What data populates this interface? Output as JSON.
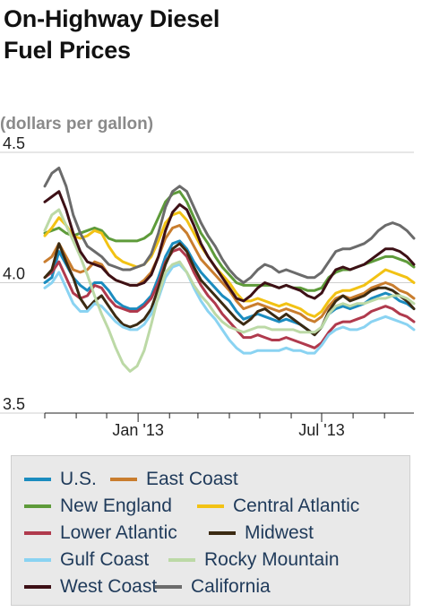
{
  "title_line1": "On-Highway Diesel",
  "title_line2": "Fuel Prices",
  "unit_label": "(dollars per gallon)",
  "chart_data": {
    "type": "line",
    "title": "On-Highway Diesel Fuel Prices",
    "ylabel": "(dollars per gallon)",
    "xlabel": "",
    "ylim": [
      3.5,
      4.5
    ],
    "yticks": [
      "4.5",
      "4.0",
      "3.5"
    ],
    "xtick_labels": [
      "Jan '13",
      "Jul '13"
    ],
    "grid": "horizontal",
    "legend_position": "bottom",
    "x": [
      "2012-10-01",
      "2012-10-08",
      "2012-10-15",
      "2012-10-22",
      "2012-10-29",
      "2012-11-05",
      "2012-11-12",
      "2012-11-19",
      "2012-11-26",
      "2012-12-03",
      "2012-12-10",
      "2012-12-17",
      "2012-12-24",
      "2012-12-31",
      "2013-01-07",
      "2013-01-14",
      "2013-01-21",
      "2013-01-28",
      "2013-02-04",
      "2013-02-11",
      "2013-02-18",
      "2013-02-25",
      "2013-03-04",
      "2013-03-11",
      "2013-03-18",
      "2013-03-25",
      "2013-04-01",
      "2013-04-08",
      "2013-04-15",
      "2013-04-22",
      "2013-04-29",
      "2013-05-06",
      "2013-05-13",
      "2013-05-20",
      "2013-05-27",
      "2013-06-03",
      "2013-06-10",
      "2013-06-17",
      "2013-06-24",
      "2013-07-01",
      "2013-07-08",
      "2013-07-15",
      "2013-07-22",
      "2013-07-29",
      "2013-08-05",
      "2013-08-12",
      "2013-08-19",
      "2013-08-26",
      "2013-09-02",
      "2013-09-09",
      "2013-09-16",
      "2013-09-23",
      "2013-09-30"
    ],
    "series": [
      {
        "name": "U.S.",
        "color": "#1b8cbf",
        "values": [
          4.0,
          4.02,
          4.12,
          4.07,
          4.02,
          3.99,
          3.97,
          4.0,
          4.0,
          3.97,
          3.93,
          3.91,
          3.9,
          3.9,
          3.92,
          3.95,
          4.02,
          4.1,
          4.15,
          4.16,
          4.13,
          4.08,
          4.04,
          4.01,
          3.98,
          3.95,
          3.93,
          3.89,
          3.86,
          3.87,
          3.88,
          3.87,
          3.86,
          3.85,
          3.86,
          3.85,
          3.84,
          3.82,
          3.8,
          3.83,
          3.88,
          3.9,
          3.91,
          3.9,
          3.91,
          3.92,
          3.94,
          3.95,
          3.96,
          3.95,
          3.93,
          3.92,
          3.9
        ]
      },
      {
        "name": "East Coast",
        "color": "#c97d2e",
        "values": [
          4.08,
          4.1,
          4.15,
          4.1,
          4.05,
          4.04,
          4.05,
          4.08,
          4.07,
          4.03,
          4.01,
          4.0,
          3.99,
          3.99,
          4.01,
          4.04,
          4.1,
          4.17,
          4.21,
          4.22,
          4.19,
          4.14,
          4.09,
          4.06,
          4.03,
          4.0,
          3.97,
          3.93,
          3.9,
          3.91,
          3.92,
          3.91,
          3.9,
          3.89,
          3.9,
          3.89,
          3.88,
          3.86,
          3.85,
          3.87,
          3.91,
          3.94,
          3.95,
          3.94,
          3.95,
          3.96,
          3.98,
          3.99,
          4.0,
          3.99,
          3.97,
          3.96,
          3.94
        ]
      },
      {
        "name": "New England",
        "color": "#5e9b3a",
        "values": [
          4.19,
          4.2,
          4.21,
          4.19,
          4.18,
          4.19,
          4.2,
          4.21,
          4.2,
          4.17,
          4.16,
          4.16,
          4.16,
          4.16,
          4.17,
          4.19,
          4.25,
          4.31,
          4.34,
          4.35,
          4.31,
          4.25,
          4.19,
          4.15,
          4.1,
          4.06,
          4.03,
          4.0,
          3.99,
          3.99,
          3.99,
          3.99,
          3.99,
          3.98,
          3.99,
          3.98,
          3.98,
          3.97,
          3.97,
          3.98,
          4.02,
          4.04,
          4.05,
          4.05,
          4.06,
          4.07,
          4.08,
          4.09,
          4.1,
          4.1,
          4.09,
          4.08,
          4.06
        ]
      },
      {
        "name": "Central Atlantic",
        "color": "#f2c214",
        "values": [
          4.18,
          4.21,
          4.25,
          4.22,
          4.18,
          4.17,
          4.18,
          4.2,
          4.19,
          4.14,
          4.1,
          4.08,
          4.07,
          4.06,
          4.07,
          4.1,
          4.16,
          4.23,
          4.26,
          4.27,
          4.24,
          4.19,
          4.14,
          4.1,
          4.06,
          4.03,
          4.0,
          3.96,
          3.93,
          3.93,
          3.94,
          3.93,
          3.92,
          3.91,
          3.92,
          3.91,
          3.9,
          3.88,
          3.87,
          3.89,
          3.93,
          3.96,
          3.97,
          3.97,
          3.98,
          3.99,
          4.01,
          4.03,
          4.05,
          4.04,
          4.03,
          4.02,
          4.0
        ]
      },
      {
        "name": "Lower Atlantic",
        "color": "#b03a4d",
        "values": [
          4.02,
          4.04,
          4.08,
          4.02,
          3.96,
          3.94,
          3.95,
          3.99,
          3.98,
          3.94,
          3.91,
          3.9,
          3.89,
          3.89,
          3.91,
          3.94,
          4.0,
          4.08,
          4.12,
          4.13,
          4.1,
          4.04,
          3.99,
          3.95,
          3.92,
          3.88,
          3.85,
          3.82,
          3.79,
          3.79,
          3.8,
          3.79,
          3.78,
          3.78,
          3.79,
          3.78,
          3.77,
          3.76,
          3.75,
          3.77,
          3.81,
          3.84,
          3.85,
          3.85,
          3.86,
          3.87,
          3.89,
          3.9,
          3.91,
          3.9,
          3.88,
          3.87,
          3.85
        ]
      },
      {
        "name": "Midwest",
        "color": "#3b2a12",
        "values": [
          4.02,
          4.05,
          4.15,
          4.08,
          4.02,
          3.94,
          3.9,
          3.93,
          3.95,
          3.91,
          3.87,
          3.84,
          3.83,
          3.84,
          3.86,
          3.9,
          3.98,
          4.07,
          4.13,
          4.15,
          4.12,
          4.06,
          4.01,
          3.98,
          3.95,
          3.92,
          3.89,
          3.86,
          3.84,
          3.86,
          3.89,
          3.9,
          3.88,
          3.86,
          3.88,
          3.86,
          3.84,
          3.82,
          3.8,
          3.83,
          3.89,
          3.93,
          3.95,
          3.93,
          3.94,
          3.95,
          3.97,
          3.98,
          3.98,
          3.97,
          3.95,
          3.93,
          3.9
        ]
      },
      {
        "name": "Gulf Coast",
        "color": "#8ad3f2",
        "values": [
          3.98,
          4.0,
          4.04,
          3.98,
          3.92,
          3.89,
          3.89,
          3.92,
          3.91,
          3.88,
          3.85,
          3.83,
          3.82,
          3.82,
          3.84,
          3.88,
          3.94,
          4.02,
          4.06,
          4.07,
          4.04,
          3.98,
          3.93,
          3.89,
          3.86,
          3.82,
          3.78,
          3.75,
          3.73,
          3.73,
          3.74,
          3.74,
          3.74,
          3.74,
          3.75,
          3.74,
          3.74,
          3.73,
          3.73,
          3.76,
          3.8,
          3.82,
          3.83,
          3.82,
          3.82,
          3.83,
          3.85,
          3.86,
          3.87,
          3.86,
          3.85,
          3.84,
          3.82
        ]
      },
      {
        "name": "Rocky Mountain",
        "color": "#bcd9a6",
        "values": [
          4.2,
          4.26,
          4.28,
          4.22,
          4.16,
          4.1,
          4.03,
          3.95,
          3.88,
          3.82,
          3.75,
          3.69,
          3.66,
          3.68,
          3.74,
          3.84,
          3.95,
          4.04,
          4.07,
          4.08,
          4.04,
          3.99,
          3.95,
          3.92,
          3.88,
          3.85,
          3.83,
          3.82,
          3.81,
          3.82,
          3.83,
          3.83,
          3.82,
          3.82,
          3.82,
          3.82,
          3.81,
          3.81,
          3.81,
          3.83,
          3.88,
          3.91,
          3.92,
          3.91,
          3.92,
          3.92,
          3.93,
          3.94,
          3.94,
          3.95,
          3.95,
          3.94,
          3.92
        ]
      },
      {
        "name": "West Coast",
        "color": "#3d1016",
        "values": [
          4.31,
          4.33,
          4.35,
          4.28,
          4.19,
          4.12,
          4.08,
          4.07,
          4.06,
          4.03,
          4.01,
          4.0,
          3.99,
          3.99,
          4.0,
          4.03,
          4.1,
          4.2,
          4.27,
          4.3,
          4.28,
          4.22,
          4.15,
          4.1,
          4.06,
          4.02,
          3.98,
          3.94,
          3.93,
          3.95,
          3.98,
          4.0,
          3.99,
          3.98,
          3.99,
          3.98,
          3.97,
          3.95,
          3.94,
          3.96,
          4.01,
          4.05,
          4.06,
          4.05,
          4.06,
          4.07,
          4.09,
          4.11,
          4.13,
          4.13,
          4.12,
          4.1,
          4.07
        ]
      },
      {
        "name": "California",
        "color": "#6b6b6b",
        "values": [
          4.37,
          4.42,
          4.44,
          4.37,
          4.26,
          4.19,
          4.14,
          4.12,
          4.1,
          4.07,
          4.06,
          4.05,
          4.05,
          4.06,
          4.07,
          4.11,
          4.19,
          4.29,
          4.35,
          4.37,
          4.35,
          4.29,
          4.23,
          4.18,
          4.14,
          4.09,
          4.05,
          4.02,
          4.0,
          4.02,
          4.05,
          4.07,
          4.06,
          4.04,
          4.05,
          4.04,
          4.03,
          4.02,
          4.02,
          4.04,
          4.08,
          4.12,
          4.13,
          4.13,
          4.14,
          4.15,
          4.17,
          4.2,
          4.22,
          4.23,
          4.22,
          4.2,
          4.17
        ]
      }
    ]
  }
}
